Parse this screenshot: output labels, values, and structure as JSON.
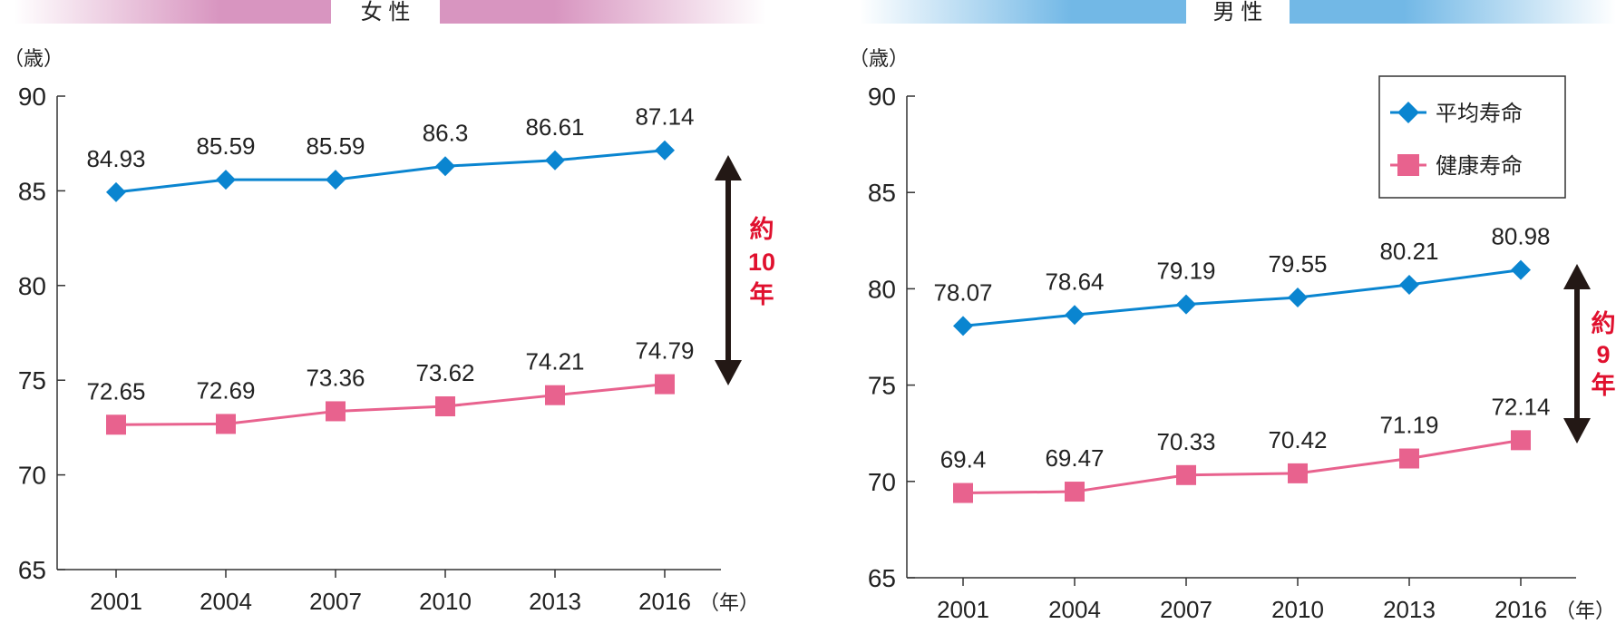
{
  "chart_data": [
    {
      "type": "line",
      "title": "女 性",
      "ylabel": "（歳）",
      "xlabel": "（年）",
      "categories": [
        "2001",
        "2004",
        "2007",
        "2010",
        "2013",
        "2016"
      ],
      "ylim": [
        65,
        90
      ],
      "yticks": [
        65,
        70,
        75,
        80,
        85,
        90
      ],
      "grid": false,
      "series": [
        {
          "name": "平均寿命",
          "values": [
            84.93,
            85.59,
            85.59,
            86.3,
            86.61,
            87.14
          ],
          "labels": [
            "84.93",
            "85.59",
            "85.59",
            "86.3",
            "86.61",
            "87.14"
          ],
          "color": "#0a85d0",
          "marker": "diamond"
        },
        {
          "name": "健康寿命",
          "values": [
            72.65,
            72.69,
            73.36,
            73.62,
            74.21,
            74.79
          ],
          "labels": [
            "72.65",
            "72.69",
            "73.36",
            "73.62",
            "74.21",
            "74.79"
          ],
          "color": "#e8628e",
          "marker": "square"
        }
      ],
      "annotation": {
        "text": [
          "約",
          "10",
          "年"
        ],
        "color": "#e0102e"
      },
      "band_color": "#d895c0"
    },
    {
      "type": "line",
      "title": "男 性",
      "ylabel": "（歳）",
      "xlabel": "（年）",
      "categories": [
        "2001",
        "2004",
        "2007",
        "2010",
        "2013",
        "2016"
      ],
      "ylim": [
        65,
        90
      ],
      "yticks": [
        65,
        70,
        75,
        80,
        85,
        90
      ],
      "grid": false,
      "legend": "top-right",
      "series": [
        {
          "name": "平均寿命",
          "values": [
            78.07,
            78.64,
            79.19,
            79.55,
            80.21,
            80.98
          ],
          "labels": [
            "78.07",
            "78.64",
            "79.19",
            "79.55",
            "80.21",
            "80.98"
          ],
          "color": "#0a85d0",
          "marker": "diamond"
        },
        {
          "name": "健康寿命",
          "values": [
            69.4,
            69.47,
            70.33,
            70.42,
            71.19,
            72.14
          ],
          "labels": [
            "69.4",
            "69.47",
            "70.33",
            "70.42",
            "71.19",
            "72.14"
          ],
          "color": "#e8628e",
          "marker": "square"
        }
      ],
      "annotation": {
        "text": [
          "約",
          "9",
          "年"
        ],
        "color": "#e0102e"
      },
      "band_color": "#72b8e6"
    }
  ]
}
